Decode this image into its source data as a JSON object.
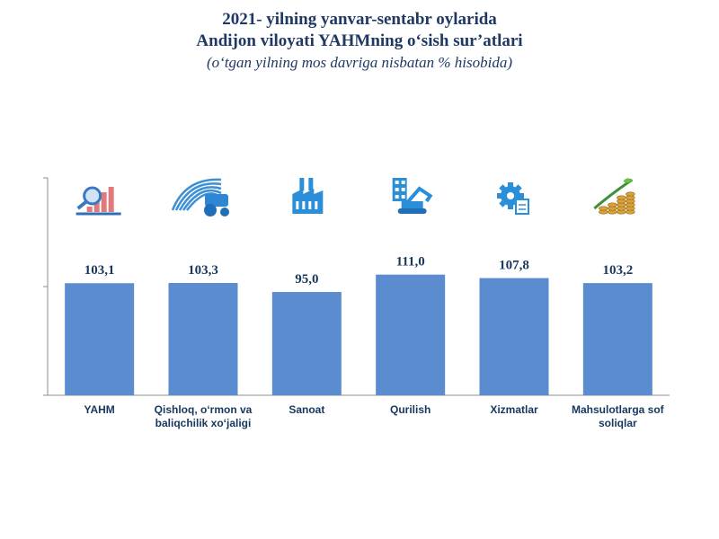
{
  "title": {
    "line1": "2021- yilning yanvar-sentabr oylarida",
    "line2": "Andijon viloyati YAHMning o‘sish sur’atlari",
    "subtitle": "(o‘tgan yilning mos davriga nisbatan % hisobida)"
  },
  "chart_data": {
    "type": "bar",
    "title": "2021- yilning yanvar-sentabr oylarida Andijon viloyati YAHMning o‘sish sur’atlari",
    "subtitle": "(o‘tgan yilning mos davriga nisbatan % hisobida)",
    "categories": [
      [
        "YAHM"
      ],
      [
        "Qishloq, o‘rmon va",
        "baliqchilik xo‘jaligi"
      ],
      [
        "Sanoat"
      ],
      [
        "Qurilish"
      ],
      [
        "Xizmatlar"
      ],
      [
        "Mahsulotlarga sof",
        "soliqlar"
      ]
    ],
    "values": [
      103.1,
      103.3,
      95.0,
      111.0,
      107.8,
      103.2
    ],
    "value_labels": [
      "103,1",
      "103,3",
      "95,0",
      "111,0",
      "107,8",
      "103,2"
    ],
    "icons": [
      "growth-chart-icon",
      "tractor-field-icon",
      "factory-icon",
      "construction-excavator-icon",
      "services-gear-icon",
      "coins-growth-icon"
    ],
    "ylim": [
      0,
      200
    ],
    "grid": false,
    "bar_color": "#5b8ccf",
    "label_color": "#17375e"
  }
}
